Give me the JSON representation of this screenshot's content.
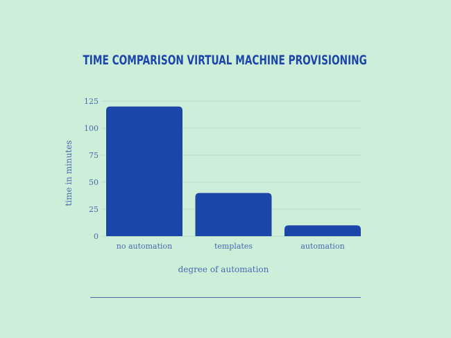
{
  "chart_data": {
    "type": "bar",
    "title": "TIME COMPARISON VIRTUAL MACHINE PROVISIONING",
    "xlabel": "degree of automation",
    "ylabel": "time in minutes",
    "categories": [
      "no automation",
      "templates",
      "automation"
    ],
    "values": [
      120,
      40,
      10
    ],
    "ylim": [
      0,
      125
    ],
    "yticks": [
      0,
      25,
      50,
      75,
      100,
      125
    ],
    "grid": true,
    "legend": "none",
    "colors": {
      "bar": "#1c46a9",
      "background": "#cdeed9",
      "text": "#4a68b3",
      "grid": "#b5dfc6"
    }
  }
}
